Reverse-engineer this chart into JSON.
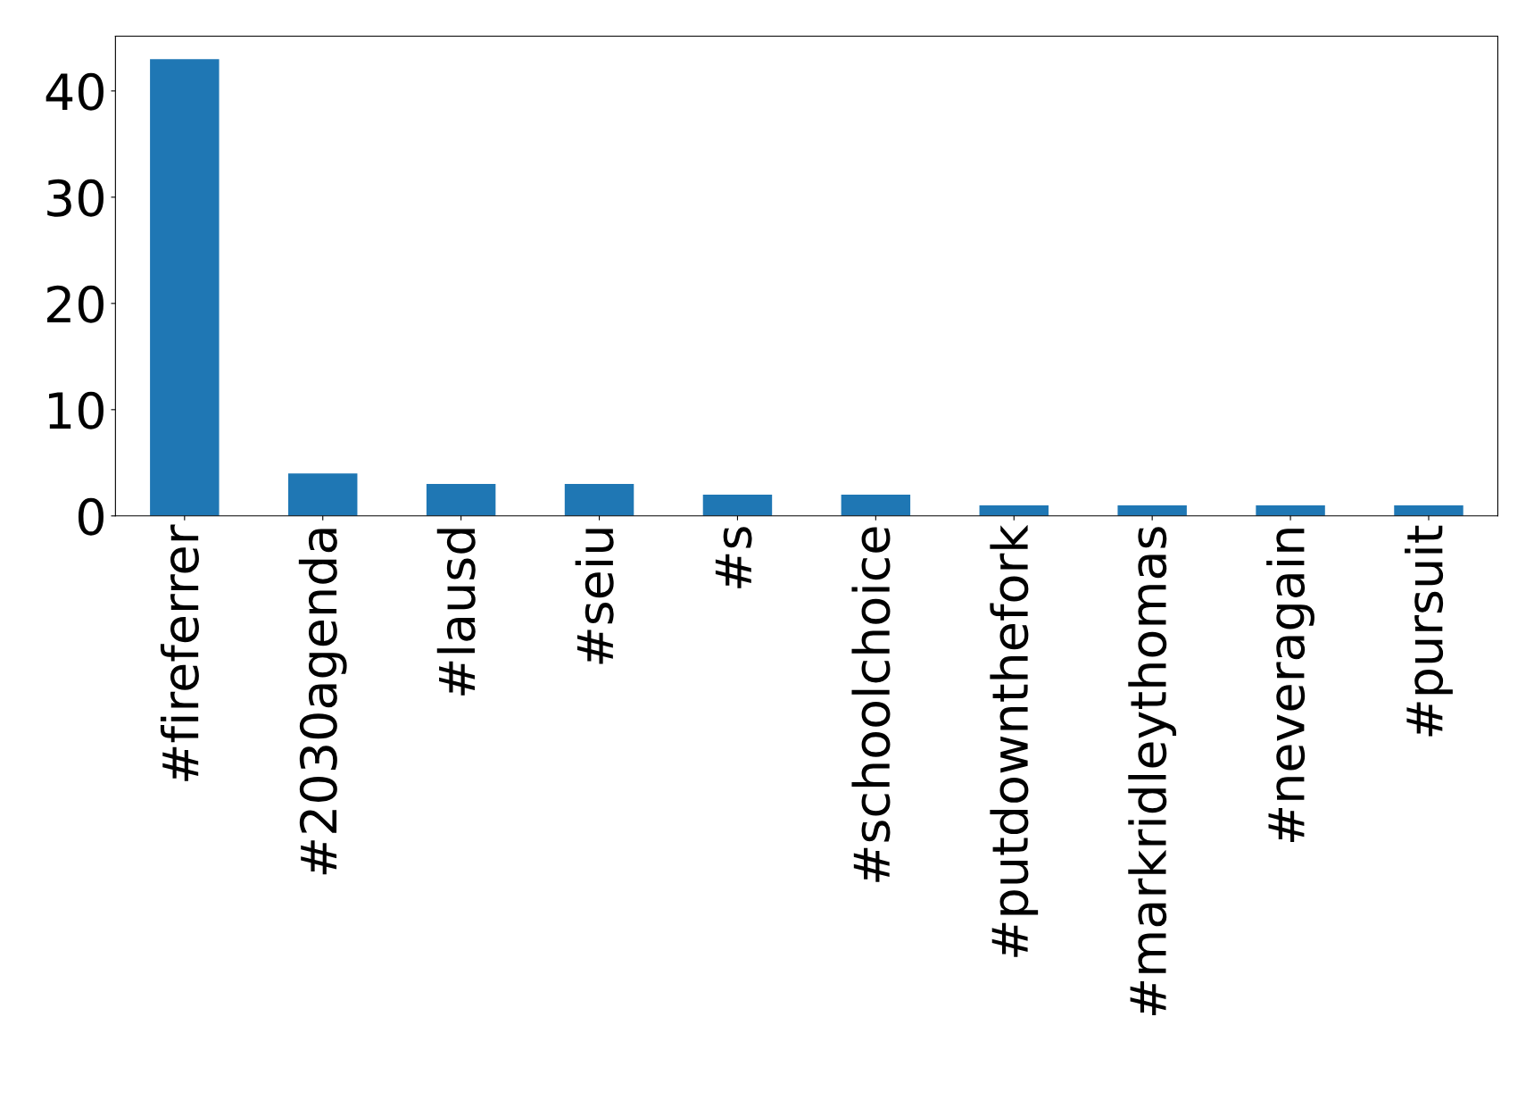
{
  "chart_data": {
    "type": "bar",
    "categories": [
      "#fireferrer",
      "#2030agenda",
      "#lausd",
      "#seiu",
      "#s",
      "#schoolchoice",
      "#putdownthefork",
      "#markridleythomas",
      "#neveragain",
      "#pursuit"
    ],
    "values": [
      43,
      4,
      3,
      3,
      2,
      2,
      1,
      1,
      1,
      1
    ],
    "color": "#1f77b4",
    "ylim": [
      0,
      45.15
    ],
    "yticks": [
      0,
      10,
      20,
      30,
      40
    ],
    "grid": false
  }
}
